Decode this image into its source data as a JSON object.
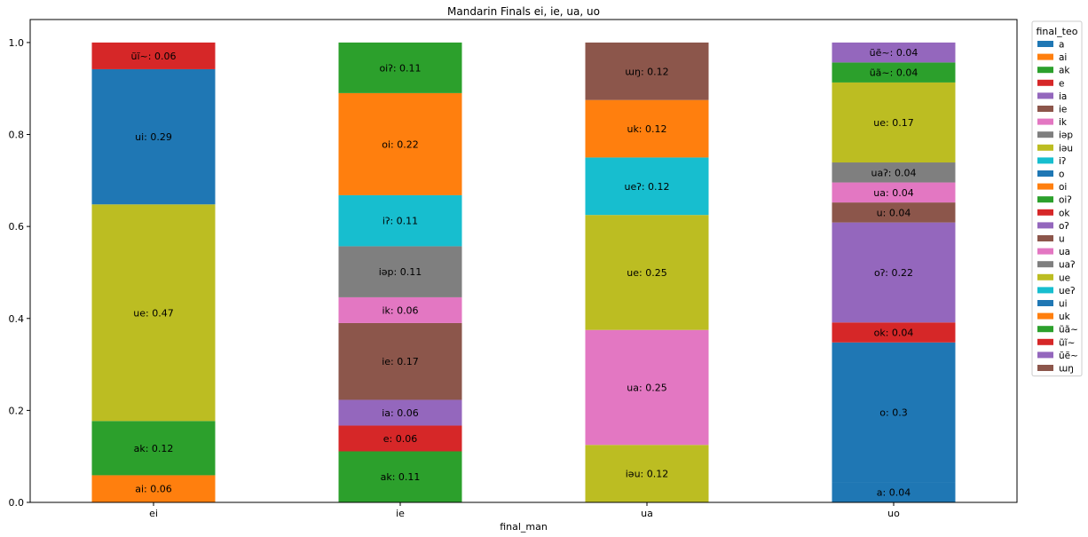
{
  "chart_data": {
    "type": "bar",
    "stacked": true,
    "title": "Mandarin Finals ei, ie, ua, uo",
    "xlabel": "final_man",
    "ylabel": "",
    "ylim": [
      0,
      1.0
    ],
    "yticks": [
      "0.0",
      "0.2",
      "0.4",
      "0.6",
      "0.8",
      "1.0"
    ],
    "categories": [
      "ei",
      "ie",
      "ua",
      "uo"
    ],
    "legend": {
      "title": "final_teo",
      "placement": "outside-right",
      "entries": [
        {
          "name": "a",
          "color": "#1f77b4"
        },
        {
          "name": "ai",
          "color": "#ff7f0e"
        },
        {
          "name": "ak",
          "color": "#2ca02c"
        },
        {
          "name": "e",
          "color": "#d62728"
        },
        {
          "name": "ia",
          "color": "#9467bd"
        },
        {
          "name": "ie",
          "color": "#8c564b"
        },
        {
          "name": "ik",
          "color": "#e377c2"
        },
        {
          "name": "iəp",
          "color": "#7f7f7f"
        },
        {
          "name": "iəu",
          "color": "#bcbd22"
        },
        {
          "name": "iʔ",
          "color": "#17becf"
        },
        {
          "name": "o",
          "color": "#1f77b4"
        },
        {
          "name": "oi",
          "color": "#ff7f0e"
        },
        {
          "name": "oiʔ",
          "color": "#2ca02c"
        },
        {
          "name": "ok",
          "color": "#d62728"
        },
        {
          "name": "oʔ",
          "color": "#9467bd"
        },
        {
          "name": "u",
          "color": "#8c564b"
        },
        {
          "name": "ua",
          "color": "#e377c2"
        },
        {
          "name": "uaʔ",
          "color": "#7f7f7f"
        },
        {
          "name": "ue",
          "color": "#bcbd22"
        },
        {
          "name": "ueʔ",
          "color": "#17becf"
        },
        {
          "name": "ui",
          "color": "#1f77b4"
        },
        {
          "name": "uk",
          "color": "#ff7f0e"
        },
        {
          "name": "ũã~",
          "color": "#2ca02c"
        },
        {
          "name": "ũĩ~",
          "color": "#d62728"
        },
        {
          "name": "ũẽ~",
          "color": "#9467bd"
        },
        {
          "name": "ɯŋ",
          "color": "#8c564b"
        }
      ]
    },
    "bars": [
      {
        "category": "ei",
        "segments": [
          {
            "name": "ai",
            "value": 0.059,
            "label": "ai: 0.06"
          },
          {
            "name": "ak",
            "value": 0.118,
            "label": "ak: 0.12"
          },
          {
            "name": "ue",
            "value": 0.471,
            "label": "ue: 0.47"
          },
          {
            "name": "ui",
            "value": 0.294,
            "label": "ui: 0.29"
          },
          {
            "name": "ũĩ~",
            "value": 0.058,
            "label": "ũĩ~: 0.06"
          }
        ]
      },
      {
        "category": "ie",
        "segments": [
          {
            "name": "ak",
            "value": 0.111,
            "label": "ak: 0.11"
          },
          {
            "name": "e",
            "value": 0.056,
            "label": "e: 0.06"
          },
          {
            "name": "ia",
            "value": 0.056,
            "label": "ia: 0.06"
          },
          {
            "name": "ie",
            "value": 0.167,
            "label": "ie: 0.17"
          },
          {
            "name": "ik",
            "value": 0.056,
            "label": "ik: 0.06"
          },
          {
            "name": "iəp",
            "value": 0.111,
            "label": "iəp: 0.11"
          },
          {
            "name": "iʔ",
            "value": 0.111,
            "label": "iʔ: 0.11"
          },
          {
            "name": "oi",
            "value": 0.222,
            "label": "oi: 0.22"
          },
          {
            "name": "oiʔ",
            "value": 0.11,
            "label": "oiʔ: 0.11"
          }
        ]
      },
      {
        "category": "ua",
        "segments": [
          {
            "name": "iəu",
            "value": 0.125,
            "label": "iəu: 0.12"
          },
          {
            "name": "ua",
            "value": 0.25,
            "label": "ua: 0.25"
          },
          {
            "name": "ue",
            "value": 0.25,
            "label": "ue: 0.25"
          },
          {
            "name": "ueʔ",
            "value": 0.125,
            "label": "ueʔ: 0.12"
          },
          {
            "name": "uk",
            "value": 0.125,
            "label": "uk: 0.12"
          },
          {
            "name": "ɯŋ",
            "value": 0.125,
            "label": "ɯŋ: 0.12"
          }
        ]
      },
      {
        "category": "uo",
        "segments": [
          {
            "name": "a",
            "value": 0.0435,
            "label": "a: 0.04"
          },
          {
            "name": "o",
            "value": 0.3043,
            "label": "o: 0.3"
          },
          {
            "name": "ok",
            "value": 0.0435,
            "label": "ok: 0.04"
          },
          {
            "name": "oʔ",
            "value": 0.2174,
            "label": "oʔ: 0.22"
          },
          {
            "name": "u",
            "value": 0.0435,
            "label": "u: 0.04"
          },
          {
            "name": "ua",
            "value": 0.0435,
            "label": "ua: 0.04"
          },
          {
            "name": "uaʔ",
            "value": 0.0435,
            "label": "uaʔ: 0.04"
          },
          {
            "name": "ue",
            "value": 0.1739,
            "label": "ue: 0.17"
          },
          {
            "name": "ũã~",
            "value": 0.0435,
            "label": "ũã~: 0.04"
          },
          {
            "name": "ũẽ~",
            "value": 0.0434,
            "label": "ũẽ~: 0.04"
          }
        ]
      }
    ]
  }
}
